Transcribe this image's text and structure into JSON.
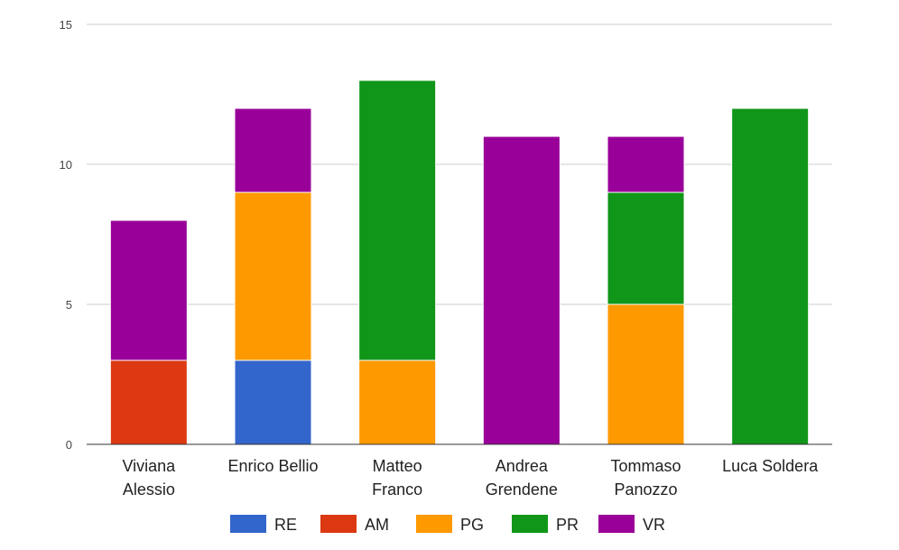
{
  "chart_data": {
    "type": "bar",
    "stacked": true,
    "categories": [
      [
        "Viviana",
        "Alessio"
      ],
      [
        "Enrico Bellio"
      ],
      [
        "Matteo",
        "Franco"
      ],
      [
        "Andrea",
        "Grendene"
      ],
      [
        "Tommaso",
        "Panozzo"
      ],
      [
        "Luca Soldera"
      ]
    ],
    "series": [
      {
        "name": "RE",
        "color": "#3366cc",
        "values": [
          0,
          3,
          0,
          0,
          0,
          0
        ]
      },
      {
        "name": "AM",
        "color": "#dc3912",
        "values": [
          3,
          0,
          0,
          0,
          0,
          0
        ]
      },
      {
        "name": "PG",
        "color": "#ff9900",
        "values": [
          0,
          6,
          3,
          0,
          5,
          0
        ]
      },
      {
        "name": "PR",
        "color": "#109618",
        "values": [
          0,
          0,
          10,
          0,
          4,
          12
        ]
      },
      {
        "name": "VR",
        "color": "#990099",
        "values": [
          5,
          3,
          0,
          11,
          2,
          0
        ]
      }
    ],
    "ylim": [
      0,
      15
    ],
    "yticks": [
      0,
      5,
      10,
      15
    ],
    "title": "",
    "xlabel": "",
    "ylabel": "",
    "grid": true,
    "legend": "bottom"
  }
}
